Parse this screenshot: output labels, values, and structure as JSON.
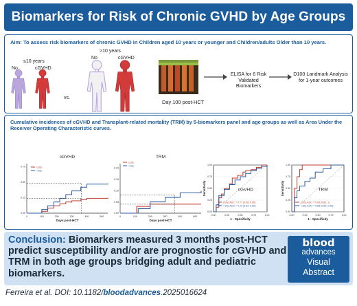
{
  "title": "Biomarkers for Risk of Chronic GVHD by Age Groups",
  "aim": "Aim: To assess risk biomarkers of chronic GVHD in Children aged 10 years or younger and Children/adults Older than 10 years.",
  "groups": {
    "young_label": "≤10 years",
    "old_label": ">10 years",
    "no_label": "No",
    "cgvhd_label": "cGVHD",
    "vs_label": "vs."
  },
  "sample_label": "Day 100 post-HCT",
  "elisa_text": "ELISA for 6 Risk Validated Biomarkers",
  "landmark_text": "D100 Landmark Analysis for 1-year outcomes",
  "cumulative_text": "Cumulative incidences of cGVHD and Transplant-related mortality (TRM) by 5-biomarkers panel and age groups as well as Area Under the Receiver Operating Characteristic curves.",
  "chart_data": [
    {
      "type": "line",
      "title": "cGVHD",
      "legend": [
        "≤10y",
        ">10y"
      ],
      "xlabel": "Days post-HCT",
      "xticks": [
        "0",
        "100",
        "200",
        "300",
        "400",
        "500"
      ],
      "yticks": [
        "0.00",
        "0.25",
        "0.50",
        "0.75"
      ],
      "ylim": [
        0,
        0.8
      ],
      "xlim": [
        0,
        540
      ],
      "series": [
        {
          "name": "≤10y",
          "color": "#c0392b",
          "x": [
            0,
            100,
            140,
            180,
            220,
            260,
            300,
            360,
            400,
            540
          ],
          "y": [
            0,
            0.03,
            0.08,
            0.12,
            0.15,
            0.18,
            0.2,
            0.22,
            0.24,
            0.25
          ]
        },
        {
          "name": ">10y",
          "color": "#2c5aa0",
          "x": [
            0,
            100,
            140,
            180,
            220,
            260,
            300,
            360,
            400,
            540
          ],
          "y": [
            0,
            0.06,
            0.12,
            0.18,
            0.24,
            0.3,
            0.36,
            0.42,
            0.47,
            0.48
          ]
        }
      ]
    },
    {
      "type": "line",
      "title": "TRM",
      "legend": [
        "≤10y",
        ">10y"
      ],
      "xlabel": "Days post-HCT",
      "xticks": [
        "0",
        "100",
        "200",
        "300",
        "400",
        "500"
      ],
      "yticks": [
        "0.00",
        "0.05",
        "0.10",
        "0.15",
        "0.20"
      ],
      "ylim": [
        0,
        0.22
      ],
      "xlim": [
        0,
        540
      ],
      "series": [
        {
          "name": "≤10y",
          "color": "#c0392b",
          "x": [
            0,
            110,
            200,
            300,
            540
          ],
          "y": [
            0,
            0.03,
            0.04,
            0.04,
            0.04
          ]
        },
        {
          "name": ">10y",
          "color": "#2c5aa0",
          "x": [
            0,
            120,
            200,
            300,
            400,
            540
          ],
          "y": [
            0,
            0.02,
            0.05,
            0.07,
            0.09,
            0.1
          ]
        }
      ]
    },
    {
      "type": "line",
      "title": "cGVHD",
      "xlabel": "1 - Specificity",
      "ylabel": "Sensitivity",
      "xticks": [
        "0.00",
        "0.25",
        "0.50",
        "0.75",
        "1.00"
      ],
      "yticks": [
        "0.00",
        "0.25",
        "0.50",
        "0.75",
        "1.00"
      ],
      "xlim": [
        0,
        1
      ],
      "ylim": [
        0,
        1
      ],
      "legend": [
        "≤10y, AUC = 0.71 (0.56, 0.85)",
        ">10y, AUC = 0.72 (0.62, 0.82)"
      ],
      "series": [
        {
          "name": "≤10y, AUC = 0.71 (0.56, 0.85)",
          "color": "#c0392b",
          "x": [
            0,
            0.05,
            0.1,
            0.15,
            0.2,
            0.3,
            0.35,
            0.45,
            0.55,
            0.6,
            0.7,
            0.8,
            0.9,
            1
          ],
          "y": [
            0,
            0.1,
            0.3,
            0.38,
            0.5,
            0.6,
            0.72,
            0.78,
            0.85,
            0.88,
            0.9,
            0.95,
            1,
            1
          ]
        },
        {
          "name": ">10y, AUC = 0.72 (0.62, 0.82)",
          "color": "#2c5aa0",
          "x": [
            0,
            0.05,
            0.1,
            0.2,
            0.3,
            0.4,
            0.5,
            0.6,
            0.7,
            0.8,
            0.9,
            1
          ],
          "y": [
            0,
            0.15,
            0.35,
            0.48,
            0.58,
            0.68,
            0.75,
            0.82,
            0.88,
            0.93,
            0.97,
            1
          ]
        }
      ]
    },
    {
      "type": "line",
      "title": "TRM",
      "xlabel": "1 - Specificity",
      "ylabel": "Sensitivity",
      "xticks": [
        "0.00",
        "0.25",
        "0.50",
        "0.75",
        "1.00"
      ],
      "yticks": [
        "0.00",
        "0.25",
        "0.50",
        "0.75",
        "1.00"
      ],
      "xlim": [
        0,
        1
      ],
      "ylim": [
        0,
        1
      ],
      "legend": [
        "≤10y, AUC = 0.93 (0.83, 1)",
        ">10y, AUC = 0.83 (0.69, 0.98)"
      ],
      "series": [
        {
          "name": "≤10y, AUC = 0.93 (0.83, 1)",
          "color": "#c0392b",
          "x": [
            0,
            0.05,
            0.1,
            0.15,
            0.2,
            0.3,
            0.5,
            0.7,
            1
          ],
          "y": [
            0,
            0.5,
            0.75,
            0.9,
            1,
            1,
            1,
            1,
            1
          ]
        },
        {
          "name": ">10y, AUC = 0.83 (0.69, 0.98)",
          "color": "#2c5aa0",
          "x": [
            0,
            0.05,
            0.1,
            0.15,
            0.25,
            0.35,
            0.45,
            0.6,
            0.75,
            1
          ],
          "y": [
            0,
            0.3,
            0.45,
            0.55,
            0.65,
            0.72,
            0.85,
            0.92,
            1,
            1
          ]
        }
      ]
    }
  ],
  "conclusion_head": "Conclusion:",
  "conclusion_body": "Biomarkers measured 3 months post-HCT predict susceptibility and/or are prognostic for cGVHD and TRM in both age groups bridging adult and pediatric biomarkers.",
  "badge": {
    "line1": "blood",
    "line2": "advances",
    "line3": "Visual",
    "line4": "Abstract"
  },
  "citation_prefix": "Ferreira et al. DOI: 10.1182/",
  "citation_journal": "bloodadvances",
  "citation_suffix": ".2025016624",
  "colors": {
    "brand": "#1a5c9c",
    "no_gvhd": "#b9a6dd",
    "gvhd": "#d33a3a",
    "red_series": "#c0392b",
    "blue_series": "#2c5aa0"
  }
}
